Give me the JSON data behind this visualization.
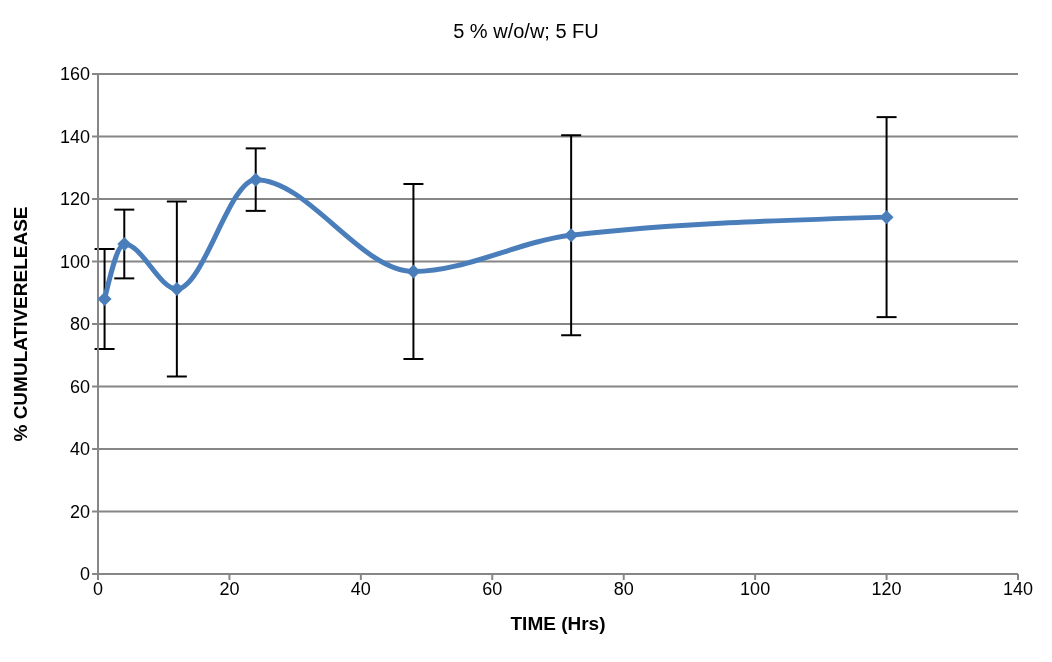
{
  "chart_data": {
    "type": "line",
    "title": "5 % w/o/w; 5 FU",
    "xlabel": "TIME (Hrs)",
    "ylabel": "% CUMULATIVERELEASE",
    "x": [
      1,
      4,
      12,
      24,
      48,
      72,
      120
    ],
    "series": [
      {
        "color": "#4a7ebb",
        "values": [
          88,
          105.6,
          91.2,
          126.2,
          96.8,
          108.4,
          114.2
        ],
        "errors": [
          16,
          11,
          28,
          10,
          28,
          32,
          32
        ]
      }
    ],
    "xlim": [
      0,
      140
    ],
    "xticks": [
      0,
      20,
      40,
      60,
      80,
      100,
      120,
      140
    ],
    "ylim": [
      0,
      160
    ],
    "yticks": [
      0,
      20,
      40,
      60,
      80,
      100,
      120,
      140,
      160
    ],
    "grid": "y",
    "legend": false,
    "marker": "diamond",
    "line_style": "solid"
  }
}
